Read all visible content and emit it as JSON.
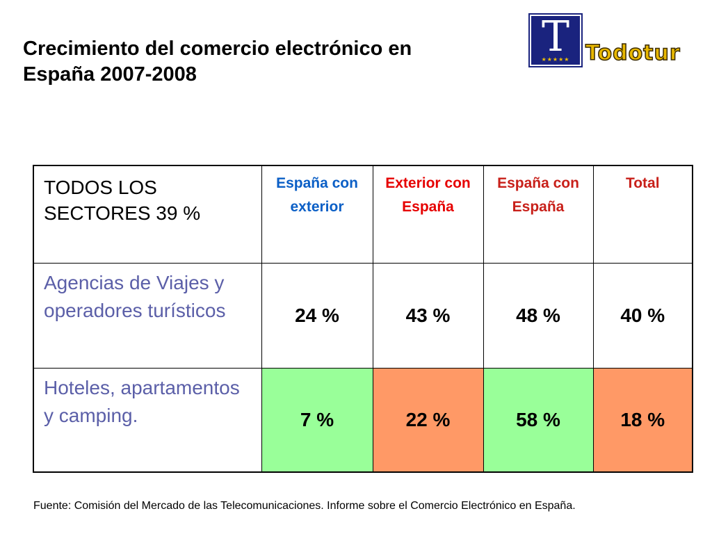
{
  "title_line1": "Crecimiento del comercio electrónico en",
  "title_line2": "España 2007-2008",
  "logo": {
    "letter": "T",
    "stars": "★★★★★",
    "text": "Todotur",
    "colors": {
      "box": "#1a237e",
      "text": "#e8b800"
    }
  },
  "table": {
    "corner_label": "TODOS LOS SECTORES 39 %",
    "columns": [
      {
        "label": "España con exterior",
        "color": "#0b5fc6"
      },
      {
        "label": "Exterior con España",
        "color": "#e60000"
      },
      {
        "label": "España con España",
        "color": "#c8201a"
      },
      {
        "label": "Total",
        "color": "#c8201a"
      }
    ],
    "rows": [
      {
        "label": "Agencias de Viajes y operadores turísticos",
        "values": [
          "24 %",
          "43 %",
          "48 %",
          "40 %"
        ]
      },
      {
        "label": "Hoteles, apartamentos y camping.",
        "values": [
          "7 %",
          "22 %",
          "58 %",
          "18 %"
        ],
        "cell_colors": [
          "#99ff99",
          "#ff9966",
          "#99ff99",
          "#ff9966"
        ]
      }
    ]
  },
  "source": "Fuente: Comisión del Mercado de las Telecomunicaciones. Informe sobre el Comercio Electrónico en España."
}
